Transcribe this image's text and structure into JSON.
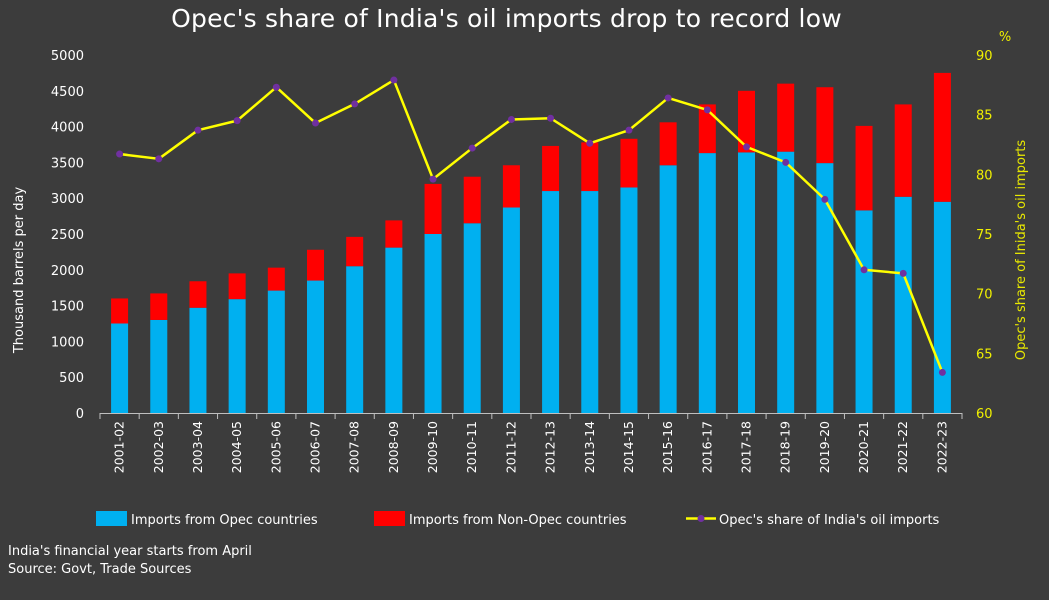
{
  "chart_data": {
    "type": "bar",
    "title": "Opec's share of India's oil imports drop to record low",
    "categories": [
      "2001-02",
      "2002-03",
      "2003-04",
      "2004-05",
      "2005-06",
      "2006-07",
      "2007-08",
      "2008-09",
      "2009-10",
      "2010-11",
      "2011-12",
      "2012-13",
      "2013-14",
      "2014-15",
      "2015-16",
      "2016-17",
      "2017-18",
      "2018-19",
      "2019-20",
      "2020-21",
      "2021-22",
      "2022-23"
    ],
    "series": [
      {
        "name": "Imports from Opec countries",
        "kind": "stacked-bar",
        "axis": "left",
        "color": "#00b0f0",
        "values": [
          1250,
          1300,
          1470,
          1590,
          1710,
          1850,
          2050,
          2310,
          2500,
          2650,
          2870,
          3100,
          3100,
          3150,
          3460,
          3630,
          3640,
          3650,
          3490,
          2830,
          3020,
          2950
        ]
      },
      {
        "name": "Imports from Non-Opec countries",
        "kind": "stacked-bar",
        "axis": "left",
        "color": "#ff0000",
        "values": [
          350,
          370,
          370,
          360,
          320,
          430,
          410,
          380,
          700,
          650,
          590,
          630,
          680,
          680,
          600,
          680,
          860,
          950,
          1060,
          1180,
          1290,
          1800
        ]
      },
      {
        "name": "Opec's share of India's oil imports",
        "kind": "line",
        "axis": "right",
        "color": "#ffff00",
        "marker_color": "#7030a0",
        "values": [
          81.7,
          81.3,
          83.7,
          84.5,
          87.3,
          84.3,
          85.9,
          87.9,
          79.6,
          82.2,
          84.6,
          84.7,
          82.6,
          83.7,
          86.4,
          85.4,
          82.3,
          81.0,
          77.9,
          72.0,
          71.7,
          63.4
        ]
      }
    ],
    "ylabel": "Thousand barrels per day",
    "ylim": [
      0,
      5000
    ],
    "y_ticks": [
      "0",
      "500",
      "1000",
      "1500",
      "2000",
      "2500",
      "3000",
      "3500",
      "4000",
      "4500",
      "5000"
    ],
    "y2label": "Opec's share of Inida's oil imports",
    "y2unit": "%",
    "y2lim": [
      60,
      90
    ],
    "y2_ticks": [
      "60",
      "65",
      "70",
      "75",
      "80",
      "85",
      "90"
    ],
    "grid": false,
    "legend_position": "bottom",
    "footnotes": [
      "India's financial year starts from April",
      "Source: Govt, Trade Sources"
    ]
  },
  "colors": {
    "background": "#3c3c3c",
    "opec": "#00b0f0",
    "non_opec": "#ff0000",
    "share_line": "#ffff00",
    "share_marker": "#7030a0"
  }
}
